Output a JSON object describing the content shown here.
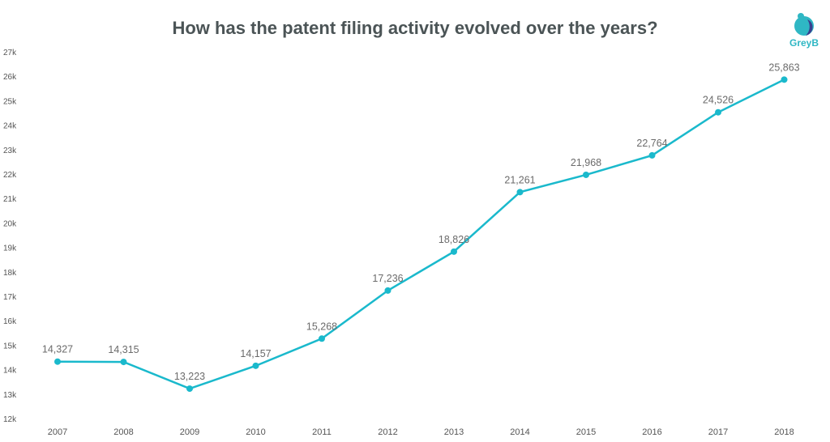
{
  "title": "How has the patent filing activity evolved over the years?",
  "logo_text": "GreyB",
  "colors": {
    "line": "#1ab9cc",
    "title": "#4b5456",
    "logo": "#2fb7c4"
  },
  "chart_data": {
    "type": "line",
    "title": "How has the patent filing activity evolved over the years?",
    "categories": [
      "2007",
      "2008",
      "2009",
      "2010",
      "2011",
      "2012",
      "2013",
      "2014",
      "2015",
      "2016",
      "2017",
      "2018"
    ],
    "series": [
      {
        "values": [
          14327,
          14315,
          13223,
          14157,
          15268,
          17236,
          18826,
          21261,
          21968,
          22764,
          24526,
          25863
        ],
        "labels": [
          "14,327",
          "14,315",
          "13,223",
          "14,157",
          "15,268",
          "17,236",
          "18,826",
          "21,261",
          "21,968",
          "22,764",
          "24,526",
          "25,863"
        ]
      }
    ],
    "y_ticks": [
      "12k",
      "13k",
      "14k",
      "15k",
      "16k",
      "17k",
      "18k",
      "19k",
      "20k",
      "21k",
      "22k",
      "23k",
      "24k",
      "25k",
      "26k",
      "27k"
    ],
    "ylim": [
      12000,
      27000
    ],
    "grid": false,
    "legend": "none"
  }
}
